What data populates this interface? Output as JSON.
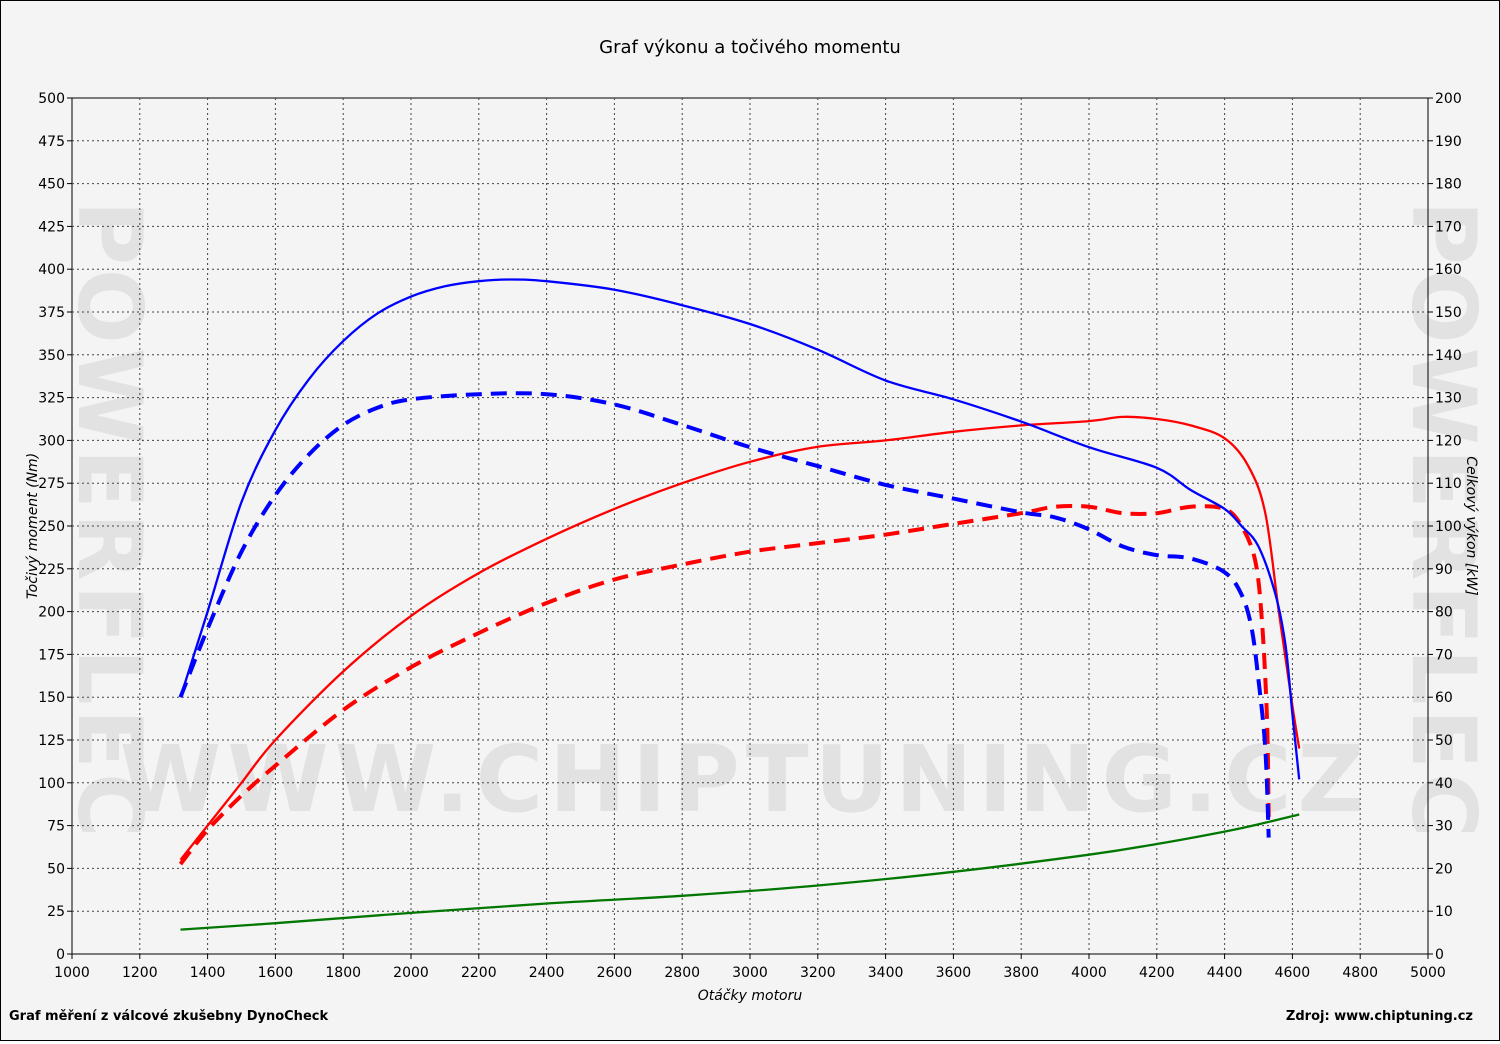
{
  "colors": {
    "torque": "#0000ff",
    "power": "#ff0000",
    "loss": "#007700",
    "grid": "#444444"
  },
  "footer": {
    "left": "Graf měření z válcové zkušebny DynoCheck",
    "right": "Zdroj: www.chiptuning.cz"
  },
  "watermark": {
    "url": "WWW.CHIPTUNING.CZ",
    "side": "POWERFLEC"
  },
  "chart_data": {
    "type": "line",
    "title": "Graf výkonu a točivého momentu",
    "xlabel": "Otáčky motoru",
    "ylabel_left": "Točivý moment (Nm)",
    "ylabel_right": "Celkový výkon [kW]",
    "xlim": [
      1000,
      5000
    ],
    "ylim_left": [
      0,
      500
    ],
    "ylim_right": [
      0,
      200
    ],
    "grid": true,
    "x_ticks": [
      "1000",
      "1200",
      "1400",
      "1600",
      "1800",
      "2000",
      "2200",
      "2400",
      "2600",
      "2800",
      "3000",
      "3200",
      "3400",
      "3600",
      "3800",
      "4000",
      "4200",
      "4400",
      "4600",
      "4800",
      "5000"
    ],
    "y_ticks_left": [
      "0",
      "25",
      "50",
      "75",
      "100",
      "125",
      "150",
      "175",
      "200",
      "225",
      "250",
      "275",
      "300",
      "325",
      "350",
      "375",
      "400",
      "425",
      "450",
      "475",
      "500"
    ],
    "y_ticks_right": [
      "0",
      "10",
      "20",
      "30",
      "40",
      "50",
      "60",
      "70",
      "80",
      "90",
      "100",
      "110",
      "120",
      "130",
      "140",
      "150",
      "160",
      "170",
      "180",
      "190",
      "200"
    ],
    "series": [
      {
        "key": "torque_tuned",
        "axis": "left",
        "color": "#0000ff",
        "style": "solid",
        "points": [
          [
            1320,
            150
          ],
          [
            1400,
            200
          ],
          [
            1500,
            264
          ],
          [
            1600,
            306
          ],
          [
            1700,
            336
          ],
          [
            1800,
            358
          ],
          [
            1900,
            374
          ],
          [
            2000,
            384
          ],
          [
            2100,
            390
          ],
          [
            2200,
            393
          ],
          [
            2300,
            394
          ],
          [
            2400,
            393
          ],
          [
            2600,
            388
          ],
          [
            2800,
            379
          ],
          [
            3000,
            368
          ],
          [
            3200,
            353
          ],
          [
            3400,
            335
          ],
          [
            3600,
            324
          ],
          [
            3800,
            311
          ],
          [
            4000,
            296
          ],
          [
            4200,
            284
          ],
          [
            4300,
            271
          ],
          [
            4400,
            260
          ],
          [
            4450,
            250
          ],
          [
            4500,
            238
          ],
          [
            4550,
            210
          ],
          [
            4580,
            180
          ],
          [
            4600,
            140
          ],
          [
            4620,
            102
          ]
        ]
      },
      {
        "key": "torque_stock",
        "axis": "left",
        "color": "#0000ff",
        "style": "dashed",
        "points": [
          [
            1320,
            150
          ],
          [
            1400,
            190
          ],
          [
            1500,
            235
          ],
          [
            1600,
            268
          ],
          [
            1700,
            292
          ],
          [
            1800,
            309
          ],
          [
            1900,
            319
          ],
          [
            2000,
            324
          ],
          [
            2200,
            327
          ],
          [
            2400,
            327
          ],
          [
            2600,
            321
          ],
          [
            2800,
            309
          ],
          [
            3000,
            296
          ],
          [
            3200,
            285
          ],
          [
            3400,
            274
          ],
          [
            3600,
            266
          ],
          [
            3800,
            258
          ],
          [
            3900,
            255
          ],
          [
            4000,
            248
          ],
          [
            4100,
            238
          ],
          [
            4200,
            233
          ],
          [
            4300,
            231
          ],
          [
            4400,
            223
          ],
          [
            4450,
            210
          ],
          [
            4480,
            190
          ],
          [
            4500,
            160
          ],
          [
            4520,
            120
          ],
          [
            4530,
            68
          ]
        ]
      },
      {
        "key": "power_tuned",
        "axis": "right",
        "color": "#ff0000",
        "style": "solid",
        "points": [
          [
            1320,
            22
          ],
          [
            1400,
            30
          ],
          [
            1500,
            40
          ],
          [
            1600,
            50
          ],
          [
            1800,
            66
          ],
          [
            2000,
            79
          ],
          [
            2200,
            89
          ],
          [
            2400,
            97
          ],
          [
            2600,
            104
          ],
          [
            2800,
            110
          ],
          [
            3000,
            115
          ],
          [
            3200,
            118.5
          ],
          [
            3400,
            120
          ],
          [
            3600,
            122
          ],
          [
            3800,
            123.5
          ],
          [
            4000,
            124.5
          ],
          [
            4100,
            125.5
          ],
          [
            4200,
            125
          ],
          [
            4300,
            123.5
          ],
          [
            4400,
            120.5
          ],
          [
            4470,
            114
          ],
          [
            4520,
            103
          ],
          [
            4560,
            80
          ],
          [
            4600,
            58
          ],
          [
            4620,
            48
          ]
        ]
      },
      {
        "key": "power_stock",
        "axis": "right",
        "color": "#ff0000",
        "style": "dashed",
        "points": [
          [
            1320,
            21
          ],
          [
            1400,
            29
          ],
          [
            1500,
            37
          ],
          [
            1600,
            44
          ],
          [
            1800,
            57
          ],
          [
            2000,
            67
          ],
          [
            2200,
            75
          ],
          [
            2400,
            82
          ],
          [
            2600,
            87.5
          ],
          [
            2800,
            91
          ],
          [
            3000,
            94
          ],
          [
            3200,
            96
          ],
          [
            3400,
            98
          ],
          [
            3600,
            100.5
          ],
          [
            3800,
            103
          ],
          [
            3900,
            104.5
          ],
          [
            4000,
            104.5
          ],
          [
            4100,
            103
          ],
          [
            4200,
            103
          ],
          [
            4300,
            104.5
          ],
          [
            4400,
            104
          ],
          [
            4450,
            100
          ],
          [
            4490,
            92
          ],
          [
            4510,
            78
          ],
          [
            4525,
            55
          ],
          [
            4530,
            32
          ]
        ]
      },
      {
        "key": "loss",
        "axis": "right",
        "color": "#007700",
        "style": "solid",
        "points": [
          [
            1320,
            5.7
          ],
          [
            1600,
            7.2
          ],
          [
            2000,
            9.6
          ],
          [
            2400,
            11.8
          ],
          [
            2800,
            13.6
          ],
          [
            3200,
            16
          ],
          [
            3600,
            19.2
          ],
          [
            4000,
            23.2
          ],
          [
            4200,
            25.7
          ],
          [
            4400,
            28.6
          ],
          [
            4500,
            30.3
          ],
          [
            4620,
            32.6
          ]
        ]
      }
    ]
  }
}
